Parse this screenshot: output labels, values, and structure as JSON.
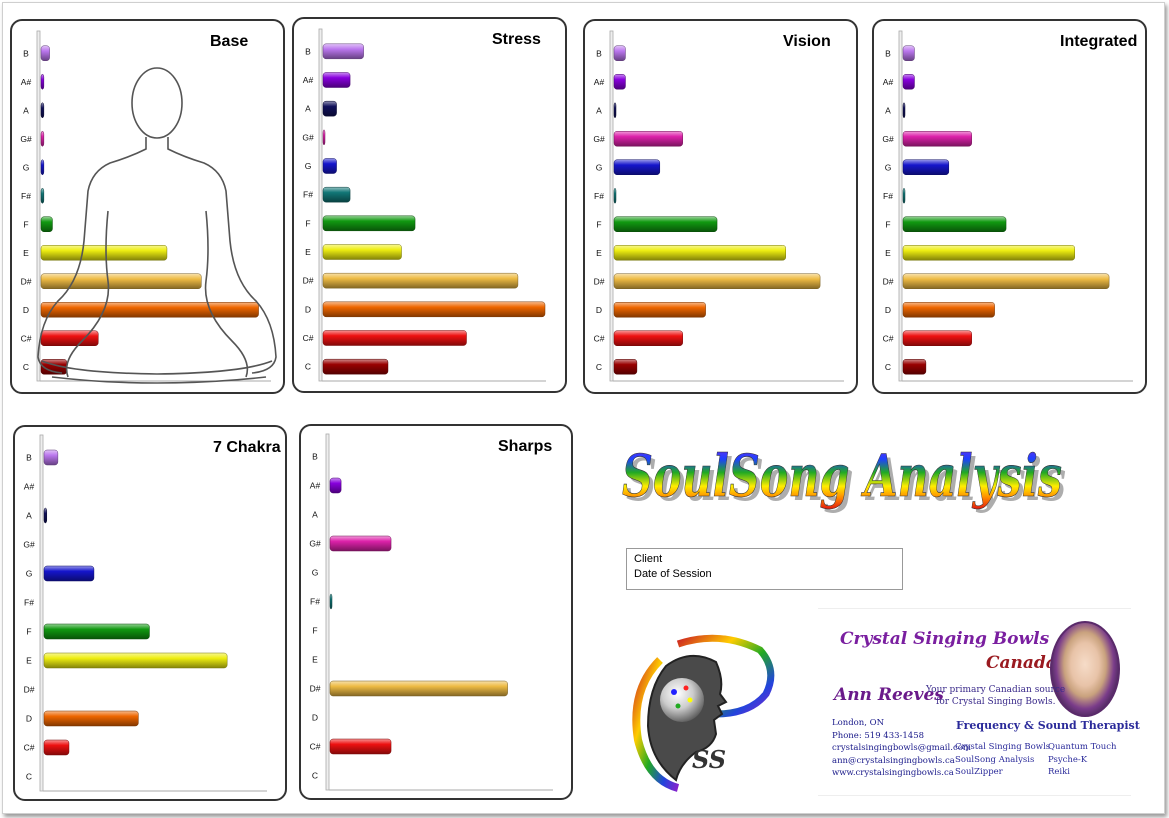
{
  "colors": {
    "B": "#bb77ee",
    "A#": "#8800dd",
    "A": "#10105a",
    "G#": "#dd22aa",
    "G": "#1515cc",
    "F#": "#117777",
    "F": "#119911",
    "E": "#eeee11",
    "D#": "#eebb44",
    "D": "#ee6600",
    "C#": "#ee1111",
    "C": "#990000"
  },
  "notes": [
    "B",
    "A#",
    "A",
    "G#",
    "G",
    "F#",
    "F",
    "E",
    "D#",
    "D",
    "C#",
    "C"
  ],
  "chart_data": [
    {
      "type": "bar",
      "title": "Base",
      "categories": [
        "B",
        "A#",
        "A",
        "G#",
        "G",
        "F#",
        "F",
        "E",
        "D#",
        "D",
        "C#",
        "C"
      ],
      "values": [
        1.5,
        0.5,
        0.5,
        0.5,
        0.5,
        0.5,
        2,
        22,
        28,
        38,
        10,
        4.5
      ],
      "xlim": [
        0,
        40
      ]
    },
    {
      "type": "bar",
      "title": "Stress",
      "categories": [
        "B",
        "A#",
        "A",
        "G#",
        "G",
        "F#",
        "F",
        "E",
        "D#",
        "D",
        "C#",
        "C"
      ],
      "values": [
        7.5,
        5,
        2.5,
        0.3,
        2.5,
        5,
        17,
        14.5,
        36,
        41,
        26.5,
        12
      ],
      "xlim": [
        0,
        41
      ]
    },
    {
      "type": "bar",
      "title": "Vision",
      "categories": [
        "B",
        "A#",
        "A",
        "G#",
        "G",
        "F#",
        "F",
        "E",
        "D#",
        "D",
        "C#",
        "C"
      ],
      "values": [
        2,
        2,
        0.3,
        12,
        8,
        0.3,
        18,
        30,
        36,
        16,
        12,
        4
      ],
      "xlim": [
        0,
        40
      ]
    },
    {
      "type": "bar",
      "title": "Integrated",
      "categories": [
        "B",
        "A#",
        "A",
        "G#",
        "G",
        "F#",
        "F",
        "E",
        "D#",
        "D",
        "C#",
        "C"
      ],
      "values": [
        2,
        2,
        0.3,
        12,
        8,
        0.3,
        18,
        30,
        36,
        16,
        12,
        4
      ],
      "xlim": [
        0,
        40
      ]
    },
    {
      "type": "bar",
      "title": "7 Chakra",
      "categories": [
        "B",
        "A#",
        "A",
        "G#",
        "G",
        "F#",
        "F",
        "E",
        "D#",
        "D",
        "C#",
        "C"
      ],
      "values": [
        2.5,
        0,
        0.5,
        0,
        9,
        0,
        19,
        33,
        0,
        17,
        4.5,
        0
      ],
      "xlim": [
        0,
        40
      ]
    },
    {
      "type": "bar",
      "title": "Sharps",
      "categories": [
        "B",
        "A#",
        "A",
        "G#",
        "G",
        "F#",
        "F",
        "E",
        "D#",
        "D",
        "C#",
        "C"
      ],
      "values": [
        0,
        2,
        0,
        11,
        0,
        0.3,
        0,
        0,
        32,
        0,
        11,
        0
      ],
      "xlim": [
        0,
        40
      ]
    }
  ],
  "title": "SoulSong Analysis",
  "client": {
    "client_label": "Client",
    "date_label": "Date of Session"
  },
  "logo": {
    "initials": "SS"
  },
  "card": {
    "brand_line1": "Crystal Singing Bowls . . .",
    "brand_line2": "Canada",
    "name": "Ann Reeves",
    "tagline1": "Your primary Canadian source",
    "tagline2": "for Crystal Singing Bowls.",
    "role": "Frequency & Sound Therapist",
    "contact": [
      "London, ON",
      "Phone: 519 433-1458",
      "crystalsingingbowls@gmail.com",
      "ann@crystalsingingbowls.ca",
      "www.crystalsingingbowls.ca"
    ],
    "services_col1": [
      "Crystal Singing Bowls",
      "SoulSong Analysis",
      "SoulZipper"
    ],
    "services_col2": [
      "Quantum Touch",
      "Psyche-K",
      "Reiki"
    ]
  }
}
